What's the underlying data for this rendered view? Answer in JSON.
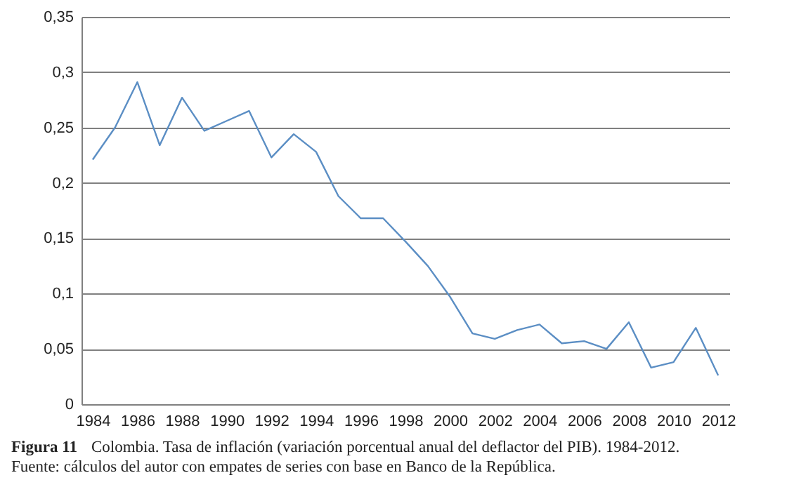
{
  "chart_data": {
    "type": "line",
    "x": [
      1984,
      1985,
      1986,
      1987,
      1988,
      1989,
      1990,
      1991,
      1992,
      1993,
      1994,
      1995,
      1996,
      1997,
      1998,
      1999,
      2000,
      2001,
      2002,
      2003,
      2004,
      2005,
      2006,
      2007,
      2008,
      2009,
      2010,
      2011,
      2012
    ],
    "series": [
      {
        "color": "#5b8ec4",
        "values": [
          0.221,
          0.25,
          0.291,
          0.234,
          0.277,
          0.247,
          0.256,
          0.265,
          0.223,
          0.244,
          0.228,
          0.188,
          0.168,
          0.168,
          0.147,
          0.125,
          0.097,
          0.064,
          0.059,
          0.067,
          0.072,
          0.055,
          0.057,
          0.05,
          0.074,
          0.033,
          0.038,
          0.069,
          0.026
        ]
      }
    ],
    "xlim": [
      1983.5,
      2012.5
    ],
    "xticks": [
      1984,
      1986,
      1988,
      1990,
      1992,
      1994,
      1996,
      1998,
      2000,
      2002,
      2004,
      2006,
      2008,
      2010,
      2012
    ],
    "ylim": [
      0,
      0.35
    ],
    "yticks": [
      {
        "value": 0,
        "label": "0"
      },
      {
        "value": 0.05,
        "label": "0,05"
      },
      {
        "value": 0.1,
        "label": "0,1"
      },
      {
        "value": 0.15,
        "label": "0,15"
      },
      {
        "value": 0.2,
        "label": "0,2"
      },
      {
        "value": 0.25,
        "label": "0,25"
      },
      {
        "value": 0.3,
        "label": "0,3"
      },
      {
        "value": 0.35,
        "label": "0,35"
      }
    ],
    "grid": "y",
    "marker": "none",
    "line_style": "solid",
    "annotations": [
      "Figura 11",
      "Colombia. Tasa de inflación (variación porcentual anual del deflactor del PIB). 1984-2012.",
      "Fuente: cálculos del autor con empates de series con base en Banco de la República."
    ]
  }
}
